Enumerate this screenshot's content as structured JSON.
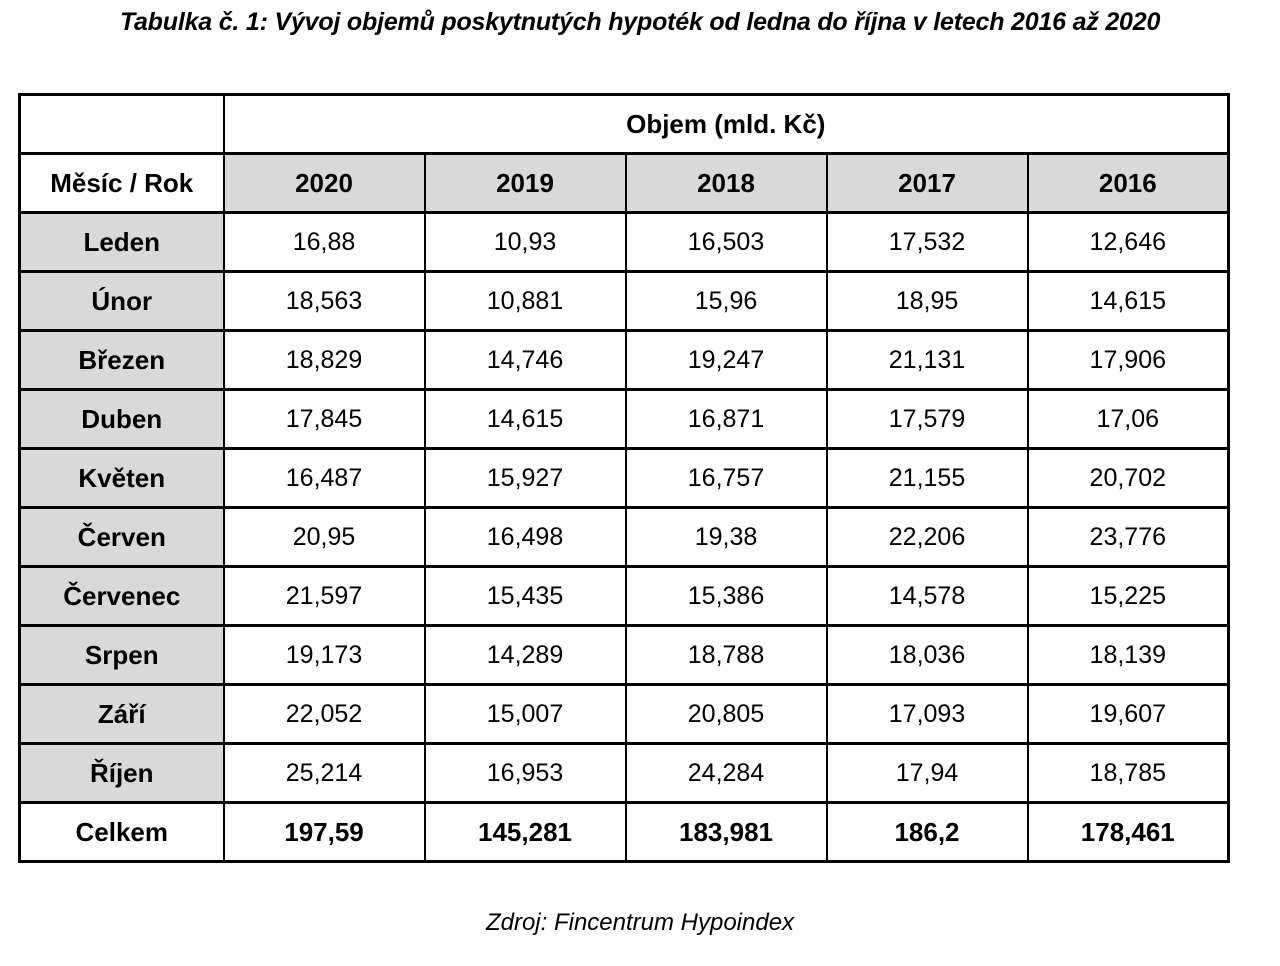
{
  "title": "Tabulka č. 1: Vývoj objemů poskytnutých hypoték od ledna do října v letech 2016 až 2020",
  "table": {
    "volume_header": "Objem (mld. Kč)",
    "corner_header": "Měsíc / Rok",
    "years": [
      "2020",
      "2019",
      "2018",
      "2017",
      "2016"
    ],
    "rows": [
      {
        "month": "Leden",
        "values": [
          "16,88",
          "10,93",
          "16,503",
          "17,532",
          "12,646"
        ]
      },
      {
        "month": "Únor",
        "values": [
          "18,563",
          "10,881",
          "15,96",
          "18,95",
          "14,615"
        ]
      },
      {
        "month": "Březen",
        "values": [
          "18,829",
          "14,746",
          "19,247",
          "21,131",
          "17,906"
        ]
      },
      {
        "month": "Duben",
        "values": [
          "17,845",
          "14,615",
          "16,871",
          "17,579",
          "17,06"
        ]
      },
      {
        "month": "Květen",
        "values": [
          "16,487",
          "15,927",
          "16,757",
          "21,155",
          "20,702"
        ]
      },
      {
        "month": "Červen",
        "values": [
          "20,95",
          "16,498",
          "19,38",
          "22,206",
          "23,776"
        ]
      },
      {
        "month": "Červenec",
        "values": [
          "21,597",
          "15,435",
          "15,386",
          "14,578",
          "15,225"
        ]
      },
      {
        "month": "Srpen",
        "values": [
          "19,173",
          "14,289",
          "18,788",
          "18,036",
          "18,139"
        ]
      },
      {
        "month": "Září",
        "values": [
          "22,052",
          "15,007",
          "20,805",
          "17,093",
          "19,607"
        ]
      },
      {
        "month": "Říjen",
        "values": [
          "25,214",
          "16,953",
          "24,284",
          "17,94",
          "18,785"
        ]
      }
    ],
    "total": {
      "label": "Celkem",
      "values": [
        "197,59",
        "145,281",
        "183,981",
        "186,2",
        "178,461"
      ]
    }
  },
  "source": "Zdroj: Fincentrum Hypoindex",
  "colors": {
    "header_fill": "#d9d9d9",
    "border": "#000000",
    "text": "#000000",
    "background": "#ffffff"
  }
}
